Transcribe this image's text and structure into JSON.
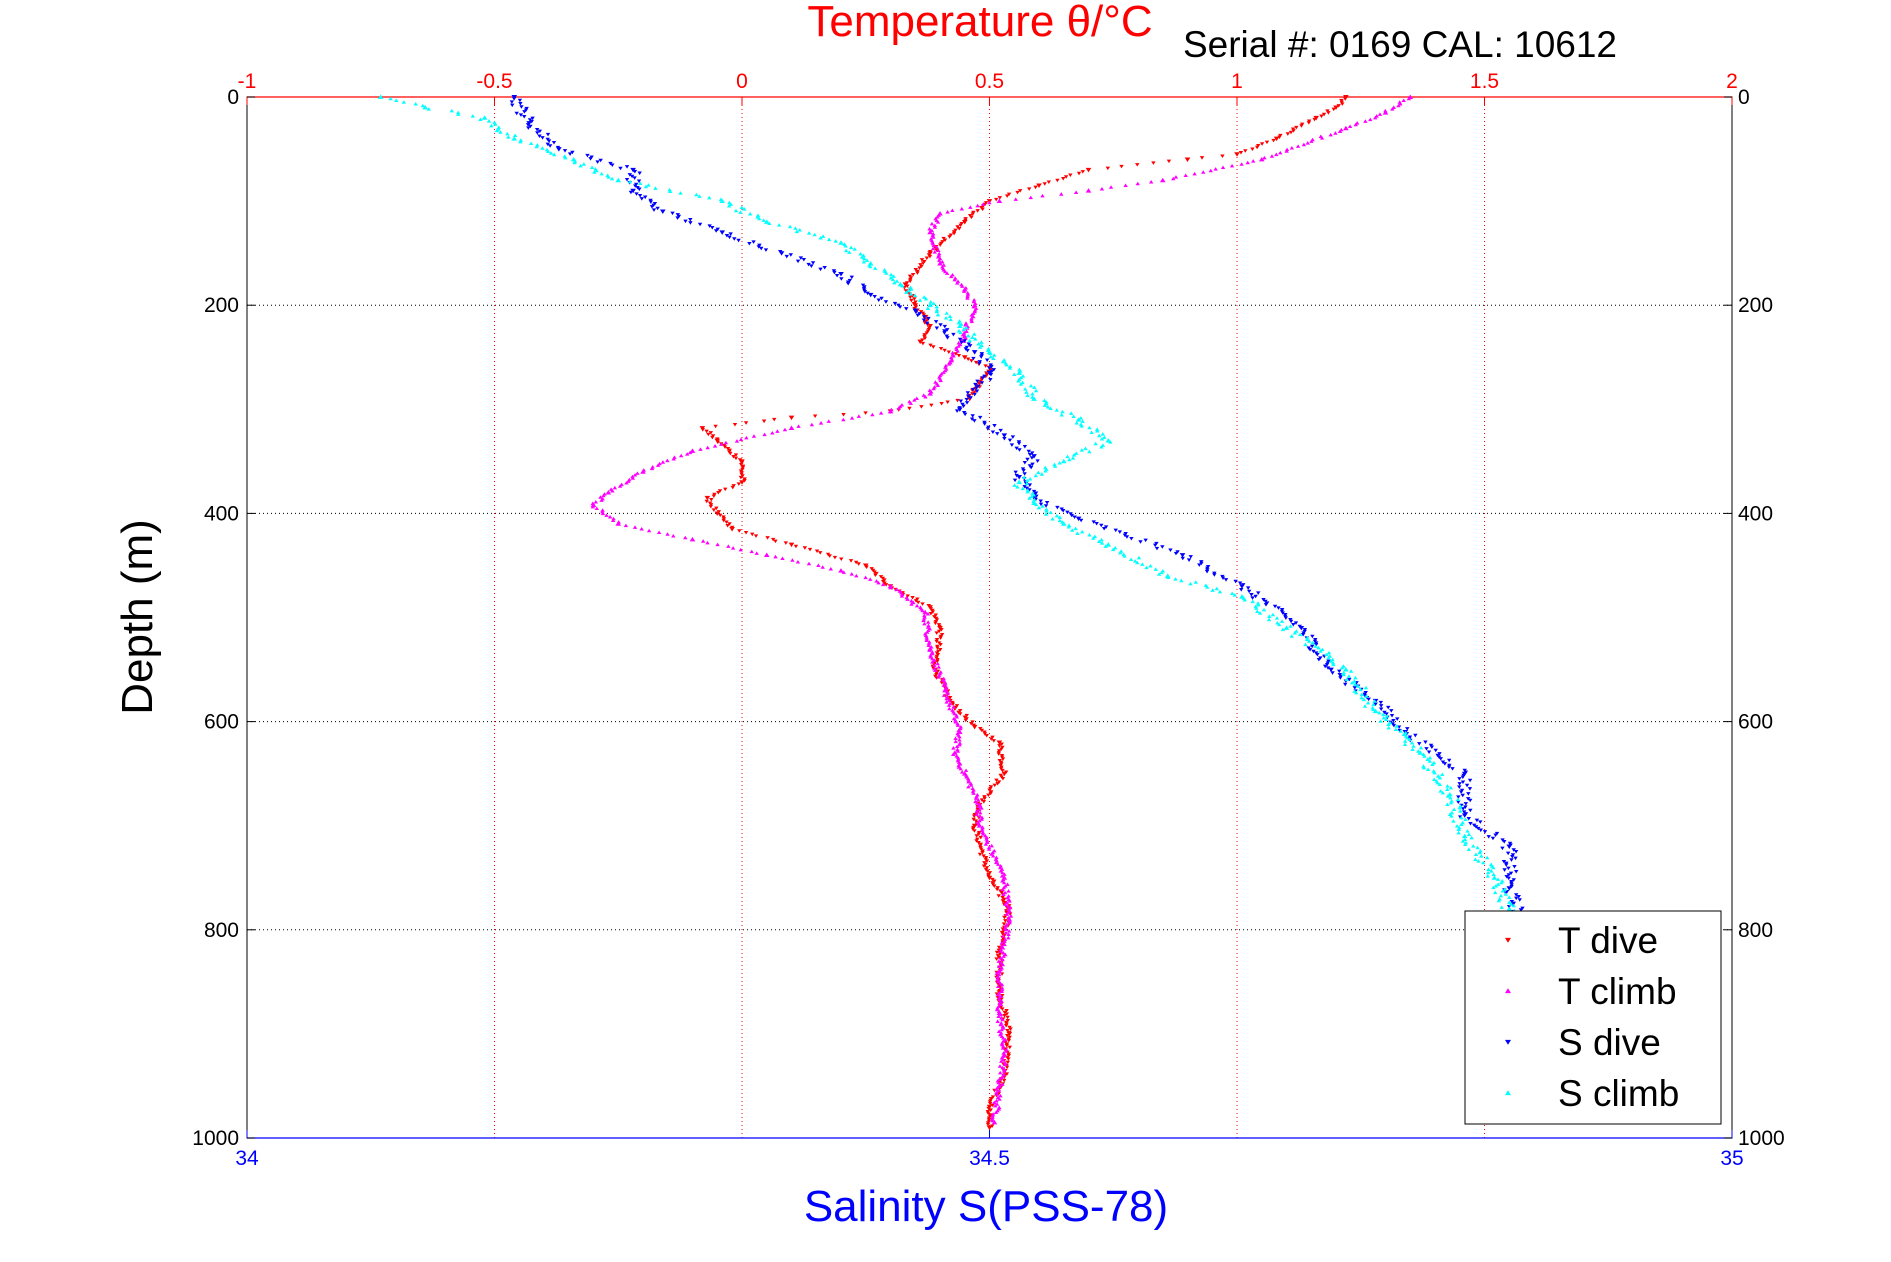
{
  "chart_data": {
    "type": "scatter",
    "title": "Temperature θ/°C",
    "annotation": "Serial #: 0169 CAL: 10612",
    "xlabel": "Salinity S(PSS-78)",
    "ylabel": "Depth (m)",
    "temp_axis": {
      "label": "Temperature θ/°C",
      "range": [
        -1,
        2
      ],
      "ticks": [
        "-1",
        "-0.5",
        "0",
        "0.5",
        "1",
        "1.5",
        "2"
      ],
      "color": "#ff0000"
    },
    "sal_axis": {
      "label": "Salinity S(PSS-78)",
      "range": [
        34,
        35
      ],
      "ticks": [
        "34",
        "34.5",
        "35"
      ],
      "color": "#0000ff"
    },
    "depth_axis": {
      "range": [
        0,
        1000
      ],
      "reversed": true,
      "ticks": [
        "0",
        "200",
        "400",
        "600",
        "800",
        "1000"
      ]
    },
    "grid": true,
    "legend_position": "bottom-right",
    "series": [
      {
        "name": "T dive",
        "axis": "temp",
        "color": "#ff0000",
        "marker": "triangle-down",
        "points": [
          [
            1.22,
            0
          ],
          [
            1.2,
            10
          ],
          [
            1.16,
            20
          ],
          [
            1.08,
            40
          ],
          [
            1.0,
            55
          ],
          [
            0.9,
            60
          ],
          [
            0.7,
            70
          ],
          [
            0.6,
            85
          ],
          [
            0.5,
            100
          ],
          [
            0.45,
            120
          ],
          [
            0.38,
            150
          ],
          [
            0.33,
            180
          ],
          [
            0.35,
            200
          ],
          [
            0.38,
            220
          ],
          [
            0.36,
            235
          ],
          [
            0.45,
            250
          ],
          [
            0.5,
            260
          ],
          [
            0.48,
            275
          ],
          [
            0.46,
            290
          ],
          [
            0.3,
            302
          ],
          [
            0.1,
            308
          ],
          [
            -0.08,
            318
          ],
          [
            -0.05,
            330
          ],
          [
            0.0,
            350
          ],
          [
            0.0,
            370
          ],
          [
            -0.07,
            385
          ],
          [
            -0.05,
            400
          ],
          [
            -0.02,
            415
          ],
          [
            0.1,
            430
          ],
          [
            0.25,
            450
          ],
          [
            0.3,
            470
          ],
          [
            0.38,
            490
          ],
          [
            0.4,
            510
          ],
          [
            0.39,
            550
          ],
          [
            0.42,
            580
          ],
          [
            0.47,
            605
          ],
          [
            0.52,
            620
          ],
          [
            0.53,
            650
          ],
          [
            0.48,
            680
          ],
          [
            0.47,
            700
          ],
          [
            0.5,
            750
          ],
          [
            0.54,
            780
          ],
          [
            0.52,
            820
          ],
          [
            0.52,
            860
          ],
          [
            0.54,
            900
          ],
          [
            0.53,
            940
          ],
          [
            0.5,
            970
          ],
          [
            0.5,
            990
          ]
        ]
      },
      {
        "name": "T climb",
        "axis": "temp",
        "color": "#ff00ff",
        "marker": "triangle-up",
        "points": [
          [
            1.35,
            0
          ],
          [
            1.3,
            15
          ],
          [
            1.22,
            30
          ],
          [
            1.05,
            60
          ],
          [
            0.85,
            80
          ],
          [
            0.7,
            90
          ],
          [
            0.52,
            100
          ],
          [
            0.4,
            112
          ],
          [
            0.38,
            130
          ],
          [
            0.4,
            160
          ],
          [
            0.45,
            185
          ],
          [
            0.47,
            200
          ],
          [
            0.45,
            230
          ],
          [
            0.42,
            255
          ],
          [
            0.38,
            285
          ],
          [
            0.3,
            302
          ],
          [
            0.1,
            318
          ],
          [
            -0.1,
            340
          ],
          [
            -0.2,
            360
          ],
          [
            -0.27,
            380
          ],
          [
            -0.3,
            392
          ],
          [
            -0.25,
            410
          ],
          [
            -0.1,
            425
          ],
          [
            0.05,
            440
          ],
          [
            0.2,
            455
          ],
          [
            0.3,
            470
          ],
          [
            0.37,
            495
          ],
          [
            0.38,
            530
          ],
          [
            0.41,
            570
          ],
          [
            0.44,
            610
          ],
          [
            0.43,
            630
          ],
          [
            0.45,
            650
          ],
          [
            0.48,
            680
          ],
          [
            0.48,
            700
          ],
          [
            0.53,
            750
          ],
          [
            0.54,
            790
          ],
          [
            0.52,
            840
          ],
          [
            0.52,
            880
          ],
          [
            0.53,
            920
          ],
          [
            0.52,
            950
          ],
          [
            0.51,
            985
          ]
        ]
      },
      {
        "name": "S dive",
        "axis": "sal",
        "color": "#0000ff",
        "marker": "triangle-down",
        "points": [
          [
            34.18,
            0
          ],
          [
            34.19,
            25
          ],
          [
            34.21,
            50
          ],
          [
            34.26,
            70
          ],
          [
            34.26,
            90
          ],
          [
            34.28,
            110
          ],
          [
            34.32,
            130
          ],
          [
            34.36,
            150
          ],
          [
            34.4,
            170
          ],
          [
            34.42,
            190
          ],
          [
            34.45,
            205
          ],
          [
            34.47,
            225
          ],
          [
            34.49,
            245
          ],
          [
            34.5,
            265
          ],
          [
            34.48,
            300
          ],
          [
            34.51,
            325
          ],
          [
            34.53,
            345
          ],
          [
            34.52,
            365
          ],
          [
            34.53,
            385
          ],
          [
            34.56,
            405
          ],
          [
            34.63,
            440
          ],
          [
            34.67,
            470
          ],
          [
            34.71,
            510
          ],
          [
            34.73,
            550
          ],
          [
            34.76,
            580
          ],
          [
            34.78,
            610
          ],
          [
            34.82,
            650
          ],
          [
            34.82,
            690
          ],
          [
            34.85,
            720
          ],
          [
            34.85,
            760
          ],
          [
            34.86,
            800
          ],
          [
            34.87,
            840
          ],
          [
            34.88,
            880
          ],
          [
            34.89,
            920
          ],
          [
            34.88,
            950
          ],
          [
            34.89,
            980
          ]
        ]
      },
      {
        "name": "S climb",
        "axis": "sal",
        "color": "#00ffff",
        "marker": "triangle-up",
        "points": [
          [
            34.09,
            0
          ],
          [
            34.12,
            10
          ],
          [
            34.16,
            20
          ],
          [
            34.18,
            40
          ],
          [
            34.22,
            60
          ],
          [
            34.25,
            80
          ],
          [
            34.32,
            100
          ],
          [
            34.35,
            120
          ],
          [
            34.4,
            140
          ],
          [
            34.42,
            160
          ],
          [
            34.44,
            180
          ],
          [
            34.46,
            200
          ],
          [
            34.48,
            220
          ],
          [
            34.5,
            245
          ],
          [
            34.52,
            265
          ],
          [
            34.53,
            290
          ],
          [
            34.56,
            310
          ],
          [
            34.58,
            330
          ],
          [
            34.55,
            350
          ],
          [
            34.52,
            370
          ],
          [
            34.53,
            390
          ],
          [
            34.55,
            410
          ],
          [
            34.58,
            430
          ],
          [
            34.62,
            460
          ],
          [
            34.67,
            480
          ],
          [
            34.7,
            510
          ],
          [
            34.74,
            550
          ],
          [
            34.76,
            590
          ],
          [
            34.79,
            630
          ],
          [
            34.81,
            670
          ],
          [
            34.82,
            710
          ],
          [
            34.84,
            750
          ],
          [
            34.85,
            780
          ],
          [
            34.86,
            810
          ],
          [
            34.87,
            850
          ],
          [
            34.87,
            890
          ],
          [
            34.87,
            920
          ],
          [
            34.89,
            950
          ],
          [
            34.88,
            985
          ]
        ]
      }
    ]
  }
}
